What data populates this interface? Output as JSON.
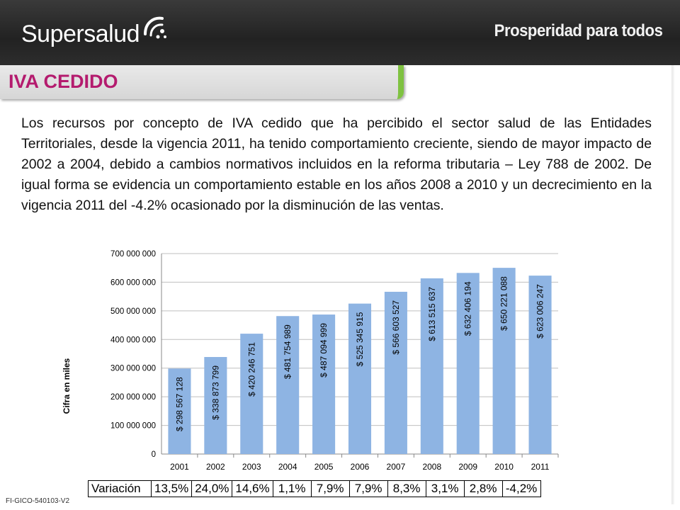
{
  "header": {
    "logo_text": "Supersalud",
    "right_text": "Prosperidad para todos"
  },
  "title": "IVA CEDIDO",
  "body_text": "Los recursos por concepto de IVA cedido que ha percibido el sector salud de las Entidades Territoriales, desde la vigencia 2011, ha tenido comportamiento creciente, siendo de mayor impacto de 2002 a 2004, debido a cambios normativos incluidos en la reforma tributaria – Ley 788 de 2002. De igual forma se evidencia un comportamiento estable en los años 2008 a 2010 y un decrecimiento en la vigencia 2011 del -4.2% ocasionado por la disminución de las ventas.",
  "chart_data": {
    "type": "bar",
    "categories": [
      "2001",
      "2002",
      "2003",
      "2004",
      "2005",
      "2006",
      "2007",
      "2008",
      "2009",
      "2010",
      "2011"
    ],
    "values": [
      298567128,
      338873799,
      420246751,
      481754989,
      487094999,
      525345915,
      566603527,
      613515637,
      632406194,
      650221088,
      623006247
    ],
    "data_labels": [
      "$ 298 567 128",
      "$ 338 873 799",
      "$ 420 246 751",
      "$ 481 754 989",
      "$ 487 094 999",
      "$ 525 345 915",
      "$ 566 603 527",
      "$ 613 515 637",
      "$ 632 406 194",
      "$ 650 221 088",
      "$ 623 006 247"
    ],
    "ylabel": "Cifra en miles",
    "ylim": [
      0,
      700000000
    ],
    "yticks": [
      0,
      100000000,
      200000000,
      300000000,
      400000000,
      500000000,
      600000000,
      700000000
    ],
    "ytick_labels": [
      "0",
      "100 000 000",
      "200 000 000",
      "300 000 000",
      "400 000 000",
      "500 000 000",
      "600 000 000",
      "700 000 000"
    ],
    "grid": true,
    "bar_color": "#8eb4e3"
  },
  "variation": {
    "label": "Variación",
    "values": [
      "13,5%",
      "24,0%",
      "14,6%",
      "1,1%",
      "7,9%",
      "7,9%",
      "8,3%",
      "3,1%",
      "2,8%",
      "-4,2%"
    ]
  },
  "footer_code": "FI-GICO-540103-V2"
}
